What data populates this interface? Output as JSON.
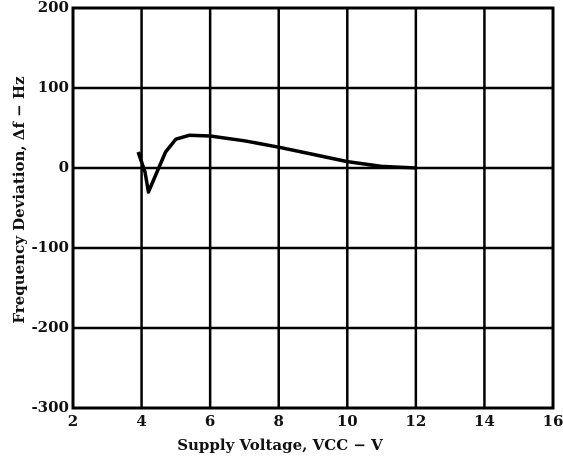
{
  "chart_data": {
    "type": "line",
    "xlabel": "Supply Voltage, VCC − V",
    "ylabel": "Frequency Deviation, Δf − Hz",
    "x": [
      3.9,
      4.1,
      4.2,
      4.4,
      4.7,
      5.0,
      5.4,
      6,
      7,
      8,
      9,
      10,
      11,
      12
    ],
    "series": [
      {
        "color": "#000000",
        "values": [
          20,
          -5,
          -30,
          -10,
          20,
          36,
          41,
          40,
          34,
          26,
          17,
          8,
          2,
          0
        ]
      }
    ],
    "xlim": [
      2,
      16
    ],
    "xticks": [
      2,
      4,
      6,
      8,
      10,
      12,
      14,
      16
    ],
    "ylim": [
      -300,
      200
    ],
    "yticks": [
      -300,
      -200,
      -100,
      0,
      100,
      200
    ],
    "grid": true
  }
}
